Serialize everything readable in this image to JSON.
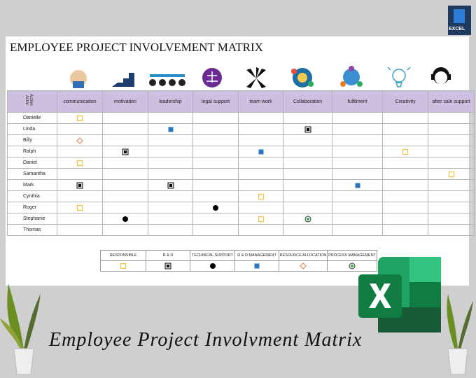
{
  "badge": {
    "label": "EXCEL"
  },
  "title": "EMPLOYEE PROJECT INVOLVEMENT MATRIX",
  "matrix": {
    "corner": {
      "top": "Action",
      "side": "Actor"
    },
    "header_color": "#cdbfe0",
    "columns": [
      "communication",
      "motivation",
      "leadership",
      "legal support",
      "team work",
      "Collaboration",
      "fulfilment",
      "Creativity",
      "after sale support"
    ],
    "rows": [
      {
        "name": "Danielle",
        "cells": [
          "responsible",
          null,
          null,
          null,
          null,
          null,
          null,
          null,
          null
        ]
      },
      {
        "name": "Linda",
        "cells": [
          null,
          null,
          "rd-management",
          null,
          null,
          "rd",
          null,
          null,
          null
        ]
      },
      {
        "name": "Billy",
        "cells": [
          "resource-allocation",
          null,
          null,
          null,
          null,
          null,
          null,
          null,
          null
        ]
      },
      {
        "name": "Ralph",
        "cells": [
          null,
          "rd",
          null,
          null,
          "rd-management",
          null,
          null,
          "responsible",
          null
        ]
      },
      {
        "name": "Daniel",
        "cells": [
          "responsible",
          null,
          null,
          null,
          null,
          null,
          null,
          null,
          null
        ]
      },
      {
        "name": "Samantha",
        "cells": [
          null,
          null,
          null,
          null,
          null,
          null,
          null,
          null,
          "responsible"
        ]
      },
      {
        "name": "Mark",
        "cells": [
          "rd",
          null,
          "rd",
          null,
          null,
          null,
          "rd-management",
          null,
          null
        ]
      },
      {
        "name": "Cynthia",
        "cells": [
          null,
          null,
          null,
          null,
          "responsible",
          null,
          null,
          null,
          null
        ]
      },
      {
        "name": "Roger",
        "cells": [
          "responsible",
          null,
          null,
          "technical-support",
          null,
          null,
          null,
          null,
          null
        ]
      },
      {
        "name": "Stephanie",
        "cells": [
          null,
          "technical-support",
          null,
          null,
          "responsible",
          "process-management",
          null,
          null,
          null
        ]
      },
      {
        "name": "Thomas",
        "cells": [
          null,
          null,
          null,
          null,
          null,
          null,
          null,
          null,
          null
        ]
      }
    ]
  },
  "legend": [
    {
      "label": "RESPONSIBLE",
      "marker": "responsible"
    },
    {
      "label": "R & D",
      "marker": "rd"
    },
    {
      "label": "TECHNICAL SUPPORT",
      "marker": "technical-support"
    },
    {
      "label": "R & D MANAGEMENT",
      "marker": "rd-management"
    },
    {
      "label": "RESOURCE ALLOCATION",
      "marker": "resource-allocation"
    },
    {
      "label": "PROCESS MANAGEMENT",
      "marker": "process-management"
    }
  ],
  "caption": "Employee Project Involvment Matrix"
}
